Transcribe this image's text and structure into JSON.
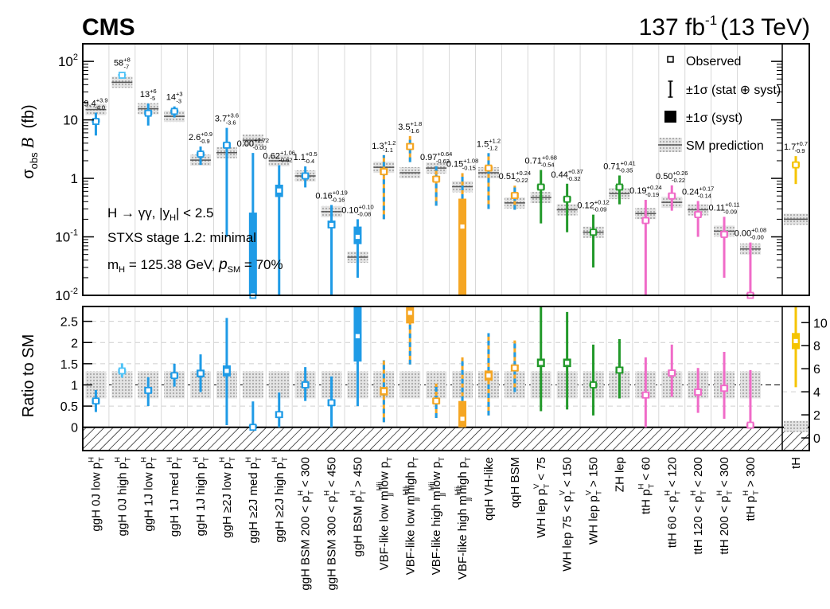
{
  "header": {
    "experiment": "CMS",
    "lumi": "137 fb",
    "lumi_sup": "-1",
    "energy": "(13 TeV)"
  },
  "legend": [
    {
      "label": "Observed",
      "symbol": "open-square"
    },
    {
      "label": "±1σ (stat ⊕ syst)",
      "symbol": "thin-bar"
    },
    {
      "label": "±1σ (syst)",
      "symbol": "filled-box"
    },
    {
      "label": "SM prediction",
      "symbol": "hatched-band"
    }
  ],
  "annotations": {
    "line1": "H → γγ, |y",
    "line1_sub": "H",
    "line1_end": "| < 2.5",
    "line2": "STXS stage 1.2: minimal",
    "line3": "m",
    "line3_sub": "H",
    "line3_end": " = 125.38 GeV,  ",
    "line3_p": "p",
    "line3_psub": "SM",
    "line3_pend": " = 70%"
  },
  "colors": {
    "ggH": "#1f9be6",
    "ggH_light": "#4fc3f7",
    "VBF": "#f5a623",
    "VH": "#22992a",
    "ttH": "#f06bc8",
    "tH": "#f5c400",
    "sm_band": "#c8c8c8"
  },
  "chart_data": {
    "type": "scatter",
    "top_panel": {
      "ylabel": "σobs B (fb)",
      "yscale": "log",
      "ylim": [
        0.01,
        200
      ],
      "yticks": [
        "10",
        "10",
        "1",
        "10",
        "10"
      ],
      "yticks_exp": [
        "-2",
        "-1",
        "",
        "",
        "2"
      ]
    },
    "bottom_panel": {
      "ylabel": "Ratio to SM",
      "ylim_left": [
        -0.55,
        2.85
      ],
      "yticks_left": [
        "0",
        "0.5",
        "1",
        "1.5",
        "2",
        "2.5"
      ],
      "ylim_right": [
        -1.1,
        11.4
      ],
      "yticks_right": [
        "0",
        "2",
        "4",
        "6",
        "8",
        "10"
      ]
    },
    "bins": [
      {
        "label": "ggH 0J low p",
        "sup": "H",
        "sub": "T",
        "colorKey": "ggH",
        "sm": 15.0,
        "obs": 9.4,
        "up": 3.9,
        "dn": 4.0,
        "sys_lo": 9.0,
        "sys_hi": 10.4,
        "val_label": "9.4",
        "up_label": "+3.9",
        "dn_label": "-4.0",
        "ratio": 0.62,
        "r_lo": 0.36,
        "r_hi": 0.88,
        "r_slo": 0.55,
        "r_shi": 0.68
      },
      {
        "label": "ggH 0J high p",
        "sup": "H",
        "sub": "T",
        "colorKey": "ggH_light",
        "sm": 44.0,
        "obs": 58,
        "up": 8,
        "dn": 7,
        "sys_lo": 56,
        "sys_hi": 61,
        "val_label": "58",
        "up_label": "+8",
        "dn_label": "-7",
        "ratio": 1.33,
        "r_lo": 1.17,
        "r_hi": 1.51,
        "r_slo": 1.28,
        "r_shi": 1.38
      },
      {
        "label": "ggH 1J low p",
        "sup": "H",
        "sub": "T",
        "colorKey": "ggH",
        "sm": 15.5,
        "obs": 13,
        "up": 6,
        "dn": 5,
        "sys_lo": 12,
        "sys_hi": 14.5,
        "val_label": "13",
        "up_label": "+6",
        "dn_label": "-5",
        "ratio": 0.87,
        "r_lo": 0.5,
        "r_hi": 1.18,
        "r_slo": 0.8,
        "r_shi": 0.95
      },
      {
        "label": "ggH 1J med p",
        "sup": "H",
        "sub": "T",
        "colorKey": "ggH",
        "sm": 11.5,
        "obs": 14,
        "up": 3,
        "dn": 3,
        "sys_lo": 13.2,
        "sys_hi": 15,
        "val_label": "14",
        "up_label": "+3",
        "dn_label": "-3",
        "ratio": 1.22,
        "r_lo": 0.96,
        "r_hi": 1.5,
        "r_slo": 1.16,
        "r_shi": 1.29
      },
      {
        "label": "ggH 1J high p",
        "sup": "H",
        "sub": "T",
        "colorKey": "ggH",
        "sm": 2.05,
        "obs": 2.6,
        "up": 0.9,
        "dn": 0.9,
        "sys_lo": 2.4,
        "sys_hi": 2.8,
        "val_label": "2.6",
        "up_label": "+0.9",
        "dn_label": "-0.9",
        "ratio": 1.27,
        "r_lo": 0.83,
        "r_hi": 1.72,
        "r_slo": 1.18,
        "r_shi": 1.36
      },
      {
        "label": "ggH ≥2J low p",
        "sup": "H",
        "sub": "T",
        "colorKey": "ggH",
        "sm": 2.75,
        "obs": 3.7,
        "up": 3.6,
        "dn": 3.6,
        "sys_lo": 3.3,
        "sys_hi": 4.1,
        "val_label": "3.7",
        "up_label": "+3.6",
        "dn_label": "-3.6",
        "ratio": 1.33,
        "r_lo": 0.05,
        "r_hi": 2.58,
        "r_slo": 1.2,
        "r_shi": 1.46
      },
      {
        "label": "ggH ≥2J med p",
        "sup": "H",
        "sub": "T",
        "colorKey": "ggH",
        "sm": 4.5,
        "obs": 0.0,
        "up": 2.72,
        "dn": 0.0,
        "sys_lo": 0.01,
        "sys_hi": 0.26,
        "val_label": "0.00",
        "up_label": "+2.72",
        "dn_label": "-0.00",
        "ratio": 0.0,
        "r_lo": 0.0,
        "r_hi": 0.61,
        "r_slo": 0.0,
        "r_shi": 0.06
      },
      {
        "label": "ggH ≥2J high p",
        "sup": "H",
        "sub": "T",
        "colorKey": "ggH",
        "sm": 2.0,
        "obs": 0.62,
        "up": 1.06,
        "dn": 0.62,
        "sys_lo": 0.48,
        "sys_hi": 0.78,
        "val_label": "0.62",
        "up_label": "+1.06",
        "dn_label": "-0.62",
        "ratio": 0.3,
        "r_lo": 0.0,
        "r_hi": 0.82,
        "r_slo": 0.22,
        "r_shi": 0.38
      },
      {
        "label": "ggH BSM 200 < p",
        "sup": "H",
        "sub": "T",
        "tail": " < 300",
        "colorKey": "ggH",
        "sm": 1.1,
        "obs": 1.1,
        "up": 0.5,
        "dn": 0.4,
        "sys_lo": 1.0,
        "sys_hi": 1.2,
        "val_label": "1.1",
        "up_label": "+0.5",
        "dn_label": "-0.4",
        "ratio": 1.0,
        "r_lo": 0.62,
        "r_hi": 1.42,
        "r_slo": 0.92,
        "r_shi": 1.08
      },
      {
        "label": "ggH BSM 300 < p",
        "sup": "H",
        "sub": "T",
        "tail": " < 450",
        "colorKey": "ggH",
        "sm": 0.27,
        "obs": 0.16,
        "up": 0.19,
        "dn": 0.16,
        "sys_lo": 0.14,
        "sys_hi": 0.19,
        "val_label": "0.16",
        "up_label": "+0.19",
        "dn_label": "-0.16",
        "ratio": 0.58,
        "r_lo": 0.0,
        "r_hi": 1.2,
        "r_slo": 0.5,
        "r_shi": 0.66
      },
      {
        "label": "ggH BSM p",
        "sup": "H",
        "sub": "T",
        "tail": " > 450",
        "colorKey": "ggH",
        "sm": 0.045,
        "obs": 0.1,
        "up": 0.1,
        "dn": 0.08,
        "sys_lo": 0.075,
        "sys_hi": 0.15,
        "val_label": "0.10",
        "up_label": "+0.10",
        "dn_label": "-0.08",
        "ratio": 2.15,
        "r_lo": 0.5,
        "r_hi": 2.85,
        "r_slo": 1.55,
        "r_shi": 2.85
      },
      {
        "label": "VBF-like low m",
        "sup": "Hjj",
        "sub": "jj",
        "tail": " low p",
        "tail_sub": "T",
        "colorKey": "VBF",
        "sm": 1.55,
        "obs": 1.3,
        "up": 1.2,
        "dn": 1.1,
        "sys_lo": 1.15,
        "sys_hi": 1.5,
        "val_label": "1.3",
        "up_label": "+1.2",
        "dn_label": "-1.1",
        "ratio": 0.85,
        "r_lo": 0.12,
        "r_hi": 1.58,
        "r_slo": 0.75,
        "r_shi": 0.95
      },
      {
        "label": "VBF-like low m",
        "sup": "Hjj",
        "sub": "jj",
        "tail": " high p",
        "tail_sub": "T",
        "colorKey": "VBF",
        "sm": 1.25,
        "obs": 3.5,
        "up": 1.8,
        "dn": 1.6,
        "sys_lo": 3.1,
        "sys_hi": 4.0,
        "val_label": "3.5",
        "up_label": "+1.8",
        "dn_label": "-1.6",
        "ratio": 2.7,
        "r_lo": 1.48,
        "r_hi": 2.85,
        "r_slo": 2.45,
        "r_shi": 2.85
      },
      {
        "label": "VBF-like high m",
        "sup": "Hjj",
        "sub": "jj",
        "tail": " low p",
        "tail_sub": "T",
        "colorKey": "VBF",
        "sm": 1.5,
        "obs": 0.97,
        "up": 0.64,
        "dn": 0.63,
        "sys_lo": 0.87,
        "sys_hi": 1.1,
        "val_label": "0.97",
        "up_label": "+0.64",
        "dn_label": "-0.63",
        "ratio": 0.62,
        "r_lo": 0.22,
        "r_hi": 1.03,
        "r_slo": 0.55,
        "r_shi": 0.69
      },
      {
        "label": "VBF-like high m",
        "sup": "Hjj",
        "sub": "jj",
        "tail": " high p",
        "tail_sub": "T",
        "colorKey": "VBF",
        "sm": 0.72,
        "obs": 0.15,
        "up": 1.08,
        "dn": 0.15,
        "sys_lo": 0.01,
        "sys_hi": 0.45,
        "val_label": "0.15",
        "up_label": "+1.08",
        "dn_label": "-0.15",
        "ratio": 0.2,
        "r_lo": 0.0,
        "r_hi": 1.65,
        "r_slo": 0.0,
        "r_shi": 0.62
      },
      {
        "label": "qqH VH-like",
        "colorKey": "VBF",
        "sm": 1.25,
        "obs": 1.5,
        "up": 1.2,
        "dn": 1.2,
        "sys_lo": 1.35,
        "sys_hi": 1.65,
        "val_label": "1.5",
        "up_label": "+1.2",
        "dn_label": "-1.2",
        "ratio": 1.22,
        "r_lo": 0.28,
        "r_hi": 2.22,
        "r_slo": 1.1,
        "r_shi": 1.34
      },
      {
        "label": "qqH BSM",
        "colorKey": "VBF",
        "sm": 0.38,
        "obs": 0.51,
        "up": 0.24,
        "dn": 0.22,
        "sys_lo": 0.46,
        "sys_hi": 0.57,
        "val_label": "0.51",
        "up_label": "+0.24",
        "dn_label": "-0.22",
        "ratio": 1.4,
        "r_lo": 0.83,
        "r_hi": 2.05,
        "r_slo": 1.32,
        "r_shi": 1.48
      },
      {
        "label": "WH lep p",
        "sup": "V",
        "sub": "T",
        "tail": " < 75",
        "colorKey": "VH",
        "sm": 0.47,
        "obs": 0.71,
        "up": 0.68,
        "dn": 0.54,
        "sys_lo": 0.64,
        "sys_hi": 0.79,
        "val_label": "0.71",
        "up_label": "+0.68",
        "dn_label": "-0.54",
        "ratio": 1.52,
        "r_lo": 0.38,
        "r_hi": 2.85,
        "r_slo": 1.42,
        "r_shi": 1.62
      },
      {
        "label": "WH lep 75 < p",
        "sup": "V",
        "sub": "T",
        "tail": " < 150",
        "colorKey": "VH",
        "sm": 0.29,
        "obs": 0.44,
        "up": 0.37,
        "dn": 0.32,
        "sys_lo": 0.4,
        "sys_hi": 0.49,
        "val_label": "0.44",
        "up_label": "+0.37",
        "dn_label": "-0.32",
        "ratio": 1.52,
        "r_lo": 0.42,
        "r_hi": 2.72,
        "r_slo": 1.42,
        "r_shi": 1.62
      },
      {
        "label": "WH lep p",
        "sup": "V",
        "sub": "T",
        "tail": " > 150",
        "colorKey": "VH",
        "sm": 0.12,
        "obs": 0.12,
        "up": 0.12,
        "dn": 0.09,
        "sys_lo": 0.115,
        "sys_hi": 0.125,
        "val_label": "0.12",
        "up_label": "+0.12",
        "dn_label": "-0.09",
        "ratio": 1.0,
        "r_lo": 0.28,
        "r_hi": 1.95,
        "r_slo": 0.96,
        "r_shi": 1.04
      },
      {
        "label": "ZH lep",
        "colorKey": "VH",
        "sm": 0.55,
        "obs": 0.71,
        "up": 0.41,
        "dn": 0.35,
        "sys_lo": 0.65,
        "sys_hi": 0.78,
        "val_label": "0.71",
        "up_label": "+0.41",
        "dn_label": "-0.35",
        "ratio": 1.35,
        "r_lo": 0.68,
        "r_hi": 2.08,
        "r_slo": 1.27,
        "r_shi": 1.43
      },
      {
        "label": "ttH p",
        "sup": "H",
        "sub": "T",
        "tail": " < 60",
        "colorKey": "ttH",
        "sm": 0.25,
        "obs": 0.19,
        "up": 0.24,
        "dn": 0.19,
        "sys_lo": 0.17,
        "sys_hi": 0.21,
        "val_label": "0.19",
        "up_label": "+0.24",
        "dn_label": "-0.19",
        "ratio": 0.76,
        "r_lo": 0.0,
        "r_hi": 1.65,
        "r_slo": 0.68,
        "r_shi": 0.84
      },
      {
        "label": "ttH 60 < p",
        "sup": "H",
        "sub": "T",
        "tail": " < 120",
        "colorKey": "ttH",
        "sm": 0.39,
        "obs": 0.5,
        "up": 0.26,
        "dn": 0.22,
        "sys_lo": 0.45,
        "sys_hi": 0.56,
        "val_label": "0.50",
        "up_label": "+0.26",
        "dn_label": "-0.22",
        "ratio": 1.28,
        "r_lo": 0.72,
        "r_hi": 1.95,
        "r_slo": 1.2,
        "r_shi": 1.36
      },
      {
        "label": "ttH 120 < p",
        "sup": "H",
        "sub": "T",
        "tail": " < 200",
        "colorKey": "ttH",
        "sm": 0.29,
        "obs": 0.24,
        "up": 0.17,
        "dn": 0.14,
        "sys_lo": 0.22,
        "sys_hi": 0.27,
        "val_label": "0.24",
        "up_label": "+0.17",
        "dn_label": "-0.14",
        "ratio": 0.83,
        "r_lo": 0.34,
        "r_hi": 1.4,
        "r_slo": 0.75,
        "r_shi": 0.91
      },
      {
        "label": "ttH 200 < p",
        "sup": "H",
        "sub": "T",
        "tail": " < 300",
        "colorKey": "ttH",
        "sm": 0.125,
        "obs": 0.11,
        "up": 0.11,
        "dn": 0.09,
        "sys_lo": 0.1,
        "sys_hi": 0.125,
        "val_label": "0.11",
        "up_label": "+0.11",
        "dn_label": "-0.09",
        "ratio": 0.92,
        "r_lo": 0.2,
        "r_hi": 1.78,
        "r_slo": 0.84,
        "r_shi": 1.0
      },
      {
        "label": "ttH p",
        "sup": "H",
        "sub": "T",
        "tail": " > 300",
        "colorKey": "ttH",
        "sm": 0.062,
        "obs": 0.0,
        "up": 0.08,
        "dn": 0.0,
        "sys_lo": 0.01,
        "sys_hi": 0.011,
        "val_label": "0.00",
        "up_label": "+0.08",
        "dn_label": "-0.00",
        "ratio": 0.05,
        "r_lo": 0.0,
        "r_hi": 1.35,
        "r_slo": 0.0,
        "r_shi": 0.1
      }
    ],
    "tH": {
      "label": "tH",
      "colorKey": "tH",
      "sm": 0.2,
      "obs": 1.7,
      "up": 0.7,
      "dn": 0.9,
      "sys_lo": 1.55,
      "sys_hi": 1.9,
      "val_label": "1.7",
      "up_label": "+0.7",
      "dn_label": "-0.9",
      "ratio": 8.4,
      "r_lo": 4.4,
      "r_hi": 11.4,
      "r_slo": 7.7,
      "r_shi": 9.1
    }
  }
}
